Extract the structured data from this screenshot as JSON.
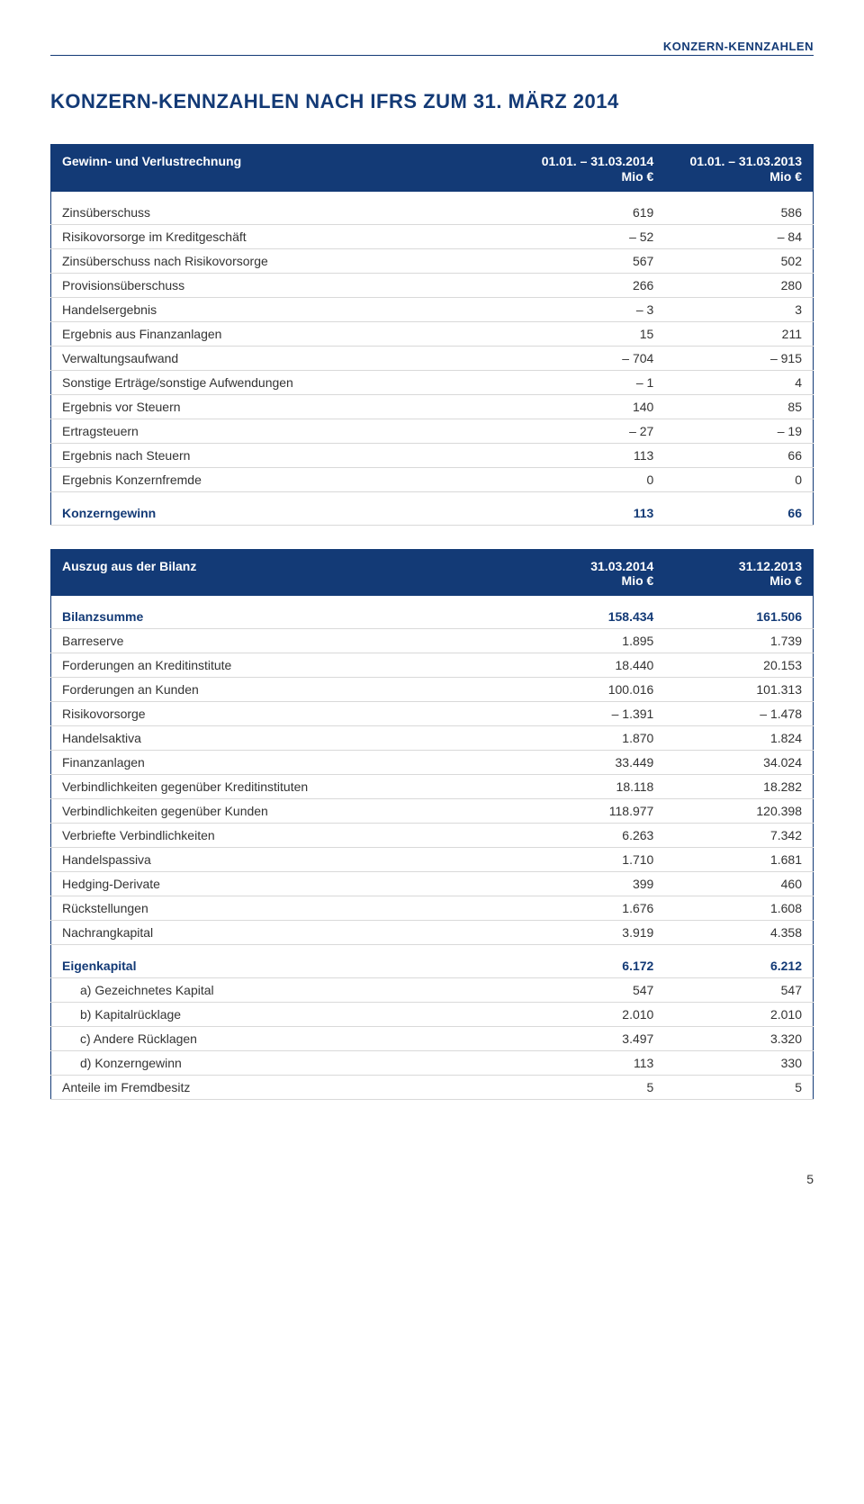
{
  "eyebrow": "KONZERN-KENNZAHLEN",
  "heading": "KONZERN-KENNZAHLEN NACH IFRS ZUM 31. MÄRZ 2014",
  "page_number": "5",
  "colors": {
    "brand": "#133a76",
    "text": "#333333",
    "rule": "#d9d9d9",
    "background": "#ffffff"
  },
  "income_table": {
    "header_label": "Gewinn- und Verlustrechnung",
    "col1": "01.01. – 31.03.2014",
    "col1_sub": "Mio €",
    "col2": "01.01. – 31.03.2013",
    "col2_sub": "Mio €",
    "rows": [
      {
        "label": "Zinsüberschuss",
        "v1": "619",
        "v2": "586"
      },
      {
        "label": "Risikovorsorge im Kreditgeschäft",
        "v1": "– 52",
        "v2": "– 84"
      },
      {
        "label": "Zinsüberschuss nach Risikovorsorge",
        "v1": "567",
        "v2": "502"
      },
      {
        "label": "Provisionsüberschuss",
        "v1": "266",
        "v2": "280"
      },
      {
        "label": "Handelsergebnis",
        "v1": "– 3",
        "v2": "3"
      },
      {
        "label": "Ergebnis aus Finanzanlagen",
        "v1": "15",
        "v2": "211"
      },
      {
        "label": "Verwaltungsaufwand",
        "v1": "– 704",
        "v2": "– 915"
      },
      {
        "label": "Sonstige Erträge/sonstige Aufwendungen",
        "v1": "– 1",
        "v2": "4"
      },
      {
        "label": "Ergebnis vor Steuern",
        "v1": "140",
        "v2": "85"
      },
      {
        "label": "Ertragsteuern",
        "v1": "– 27",
        "v2": "– 19"
      },
      {
        "label": "Ergebnis nach Steuern",
        "v1": "113",
        "v2": "66"
      },
      {
        "label": "Ergebnis Konzernfremde",
        "v1": "0",
        "v2": "0"
      }
    ],
    "total": {
      "label": "Konzerngewinn",
      "v1": "113",
      "v2": "66"
    }
  },
  "balance_table": {
    "header_label": "Auszug aus der Bilanz",
    "col1": "31.03.2014",
    "col1_sub": "Mio €",
    "col2": "31.12.2013",
    "col2_sub": "Mio €",
    "summary": {
      "label": "Bilanzsumme",
      "v1": "158.434",
      "v2": "161.506"
    },
    "rows1": [
      {
        "label": "Barreserve",
        "v1": "1.895",
        "v2": "1.739"
      },
      {
        "label": "Forderungen an Kreditinstitute",
        "v1": "18.440",
        "v2": "20.153"
      },
      {
        "label": "Forderungen an Kunden",
        "v1": "100.016",
        "v2": "101.313"
      },
      {
        "label": "Risikovorsorge",
        "v1": "– 1.391",
        "v2": "– 1.478"
      },
      {
        "label": "Handelsaktiva",
        "v1": "1.870",
        "v2": "1.824"
      },
      {
        "label": "Finanzanlagen",
        "v1": "33.449",
        "v2": "34.024"
      },
      {
        "label": "Verbindlichkeiten gegenüber Kreditinstituten",
        "v1": "18.118",
        "v2": "18.282"
      },
      {
        "label": "Verbindlichkeiten gegenüber Kunden",
        "v1": "118.977",
        "v2": "120.398"
      },
      {
        "label": "Verbriefte Verbindlichkeiten",
        "v1": "6.263",
        "v2": "7.342"
      },
      {
        "label": "Handelspassiva",
        "v1": "1.710",
        "v2": "1.681"
      },
      {
        "label": "Hedging-Derivate",
        "v1": "399",
        "v2": "460"
      },
      {
        "label": "Rückstellungen",
        "v1": "1.676",
        "v2": "1.608"
      },
      {
        "label": "Nachrangkapital",
        "v1": "3.919",
        "v2": "4.358"
      }
    ],
    "equity": {
      "label": "Eigenkapital",
      "v1": "6.172",
      "v2": "6.212"
    },
    "equity_rows": [
      {
        "label": "a) Gezeichnetes Kapital",
        "v1": "547",
        "v2": "547"
      },
      {
        "label": "b) Kapitalrücklage",
        "v1": "2.010",
        "v2": "2.010"
      },
      {
        "label": "c) Andere Rücklagen",
        "v1": "3.497",
        "v2": "3.320"
      },
      {
        "label": "d) Konzerngewinn",
        "v1": "113",
        "v2": "330"
      }
    ],
    "minority": {
      "label": "Anteile im Fremdbesitz",
      "v1": "5",
      "v2": "5"
    }
  }
}
